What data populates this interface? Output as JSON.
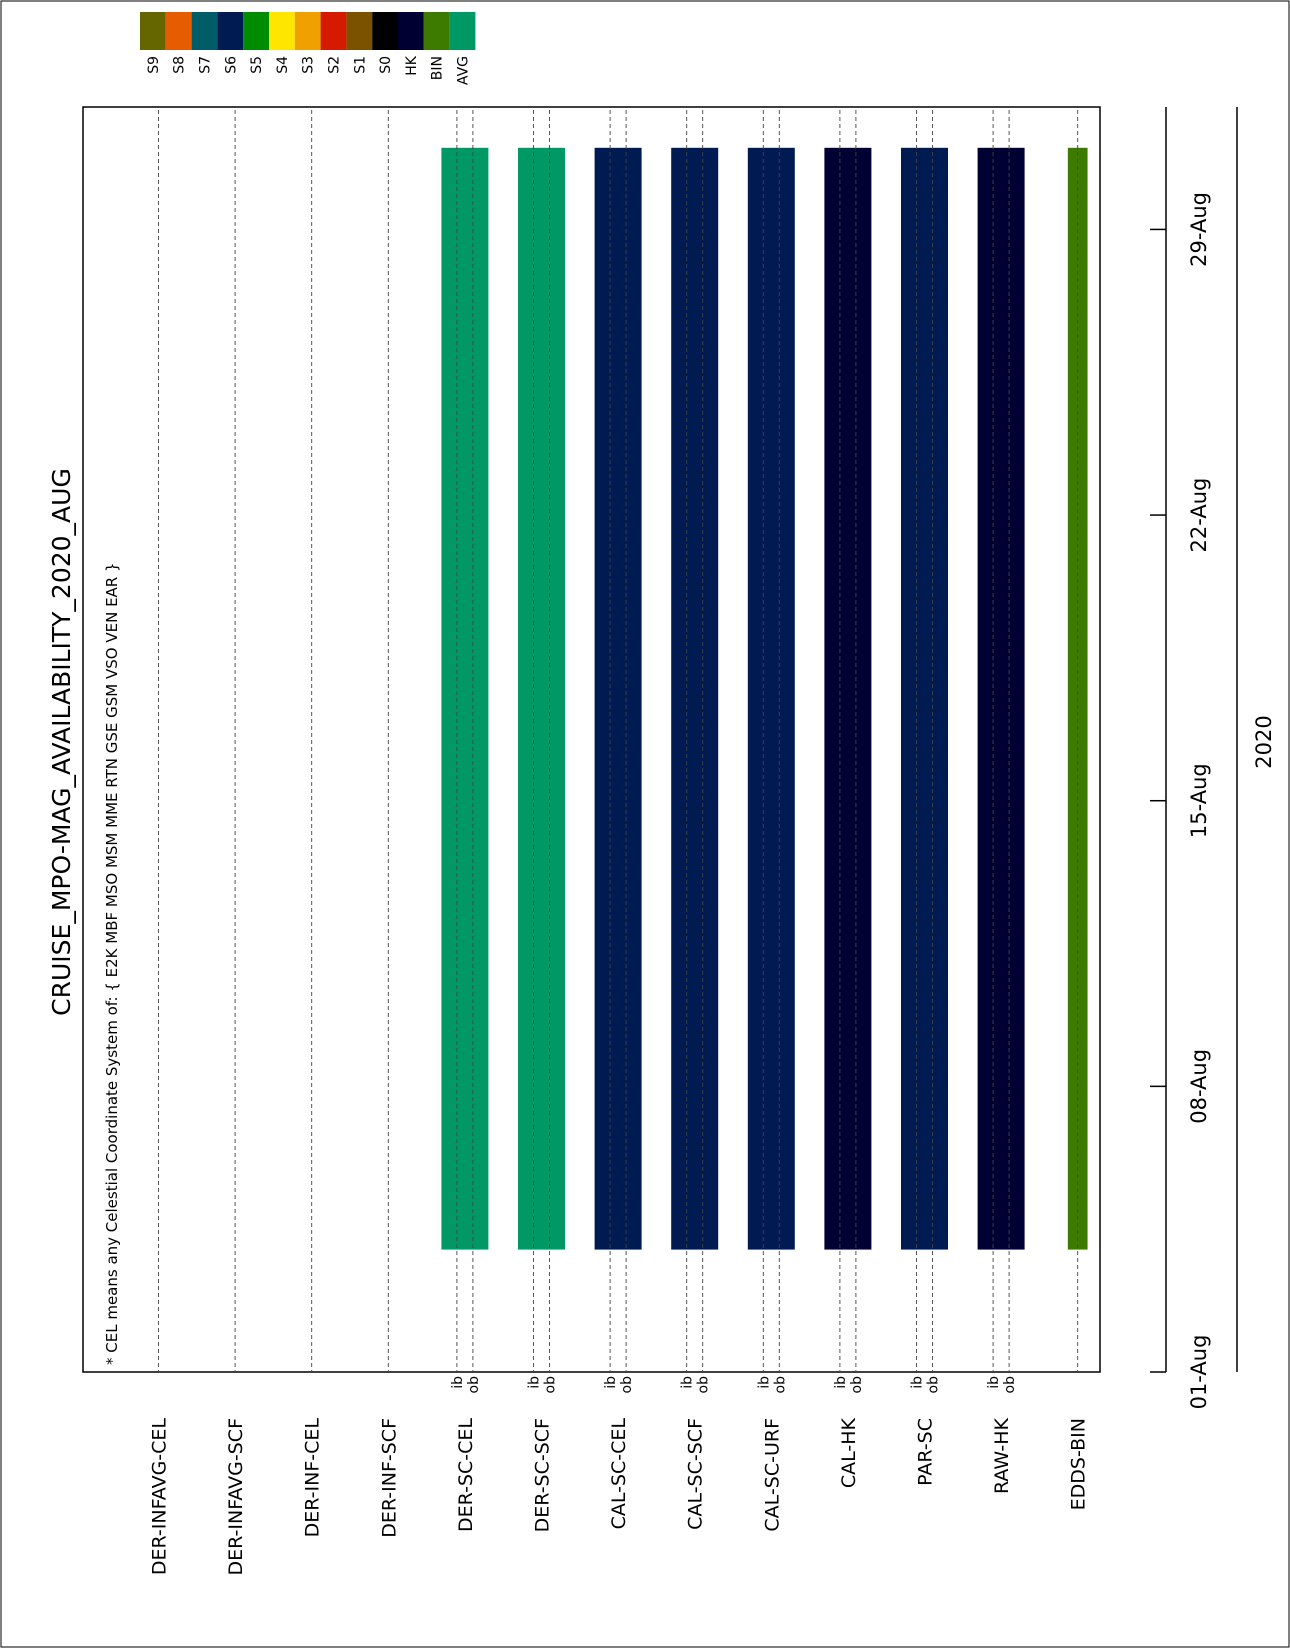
{
  "title": "CRUISE_MPO-MAG_AVAILABILITY_2020_AUG",
  "note": "* CEL means any Celestial Coordinate System of: { E2K MBF MSO MSM MME RTN GSE GSM VSO VEN EAR }",
  "legend": [
    {
      "label": "S9",
      "color": "#666600"
    },
    {
      "label": "S8",
      "color": "#e65c00"
    },
    {
      "label": "S7",
      "color": "#005c66"
    },
    {
      "label": "S6",
      "color": "#001a52"
    },
    {
      "label": "S5",
      "color": "#008c00"
    },
    {
      "label": "S4",
      "color": "#ffe600"
    },
    {
      "label": "S3",
      "color": "#f0a000"
    },
    {
      "label": "S2",
      "color": "#d61a00"
    },
    {
      "label": "S1",
      "color": "#7a5200"
    },
    {
      "label": "S0",
      "color": "#000000"
    },
    {
      "label": "HK",
      "color": "#000033"
    },
    {
      "label": "BIN",
      "color": "#3d7a00"
    },
    {
      "label": "AVG",
      "color": "#009966"
    }
  ],
  "chart_data": {
    "type": "bar",
    "title": "CRUISE_MPO-MAG_AVAILABILITY_2020_AUG",
    "xlabel": "2020",
    "orientation": "rotated-90-clockwise",
    "x_range": [
      "2020-08-01",
      "2020-08-31"
    ],
    "x_ticks": [
      "01-Aug",
      "08-Aug",
      "15-Aug",
      "22-Aug",
      "29-Aug"
    ],
    "x_tick_dates": [
      "2020-08-01",
      "2020-08-08",
      "2020-08-15",
      "2020-08-22",
      "2020-08-29"
    ],
    "rows": [
      {
        "label": "DER-INFAVG-CEL",
        "sub": false,
        "segments": []
      },
      {
        "label": "DER-INFAVG-SCF",
        "sub": false,
        "segments": []
      },
      {
        "label": "DER-INF-CEL",
        "sub": false,
        "segments": []
      },
      {
        "label": "DER-INF-SCF",
        "sub": false,
        "segments": []
      },
      {
        "label": "DER-SC-CEL",
        "sub": true,
        "segments": [
          {
            "start": "2020-08-04",
            "end": "2020-08-31",
            "color": "#009966"
          }
        ]
      },
      {
        "label": "DER-SC-SCF",
        "sub": true,
        "segments": [
          {
            "start": "2020-08-04",
            "end": "2020-08-31",
            "color": "#009966"
          }
        ]
      },
      {
        "label": "CAL-SC-CEL",
        "sub": true,
        "segments": [
          {
            "start": "2020-08-04",
            "end": "2020-08-31",
            "color": "#001a52"
          }
        ]
      },
      {
        "label": "CAL-SC-SCF",
        "sub": true,
        "segments": [
          {
            "start": "2020-08-04",
            "end": "2020-08-31",
            "color": "#001a52"
          }
        ]
      },
      {
        "label": "CAL-SC-URF",
        "sub": true,
        "segments": [
          {
            "start": "2020-08-04",
            "end": "2020-08-31",
            "color": "#001a52"
          }
        ]
      },
      {
        "label": "CAL-HK",
        "sub": true,
        "segments": [
          {
            "start": "2020-08-04",
            "end": "2020-08-31",
            "color": "#000033"
          }
        ]
      },
      {
        "label": "PAR-SC",
        "sub": true,
        "segments": [
          {
            "start": "2020-08-04",
            "end": "2020-08-31",
            "color": "#001a52"
          }
        ]
      },
      {
        "label": "RAW-HK",
        "sub": true,
        "segments": [
          {
            "start": "2020-08-04",
            "end": "2020-08-31",
            "color": "#000033"
          }
        ]
      },
      {
        "label": "EDDS-BIN",
        "sub": false,
        "segments": [
          {
            "start": "2020-08-04",
            "end": "2020-08-31",
            "color": "#3d7a00"
          }
        ]
      }
    ],
    "sub_labels": [
      "ib",
      "ob"
    ],
    "grid": true
  }
}
